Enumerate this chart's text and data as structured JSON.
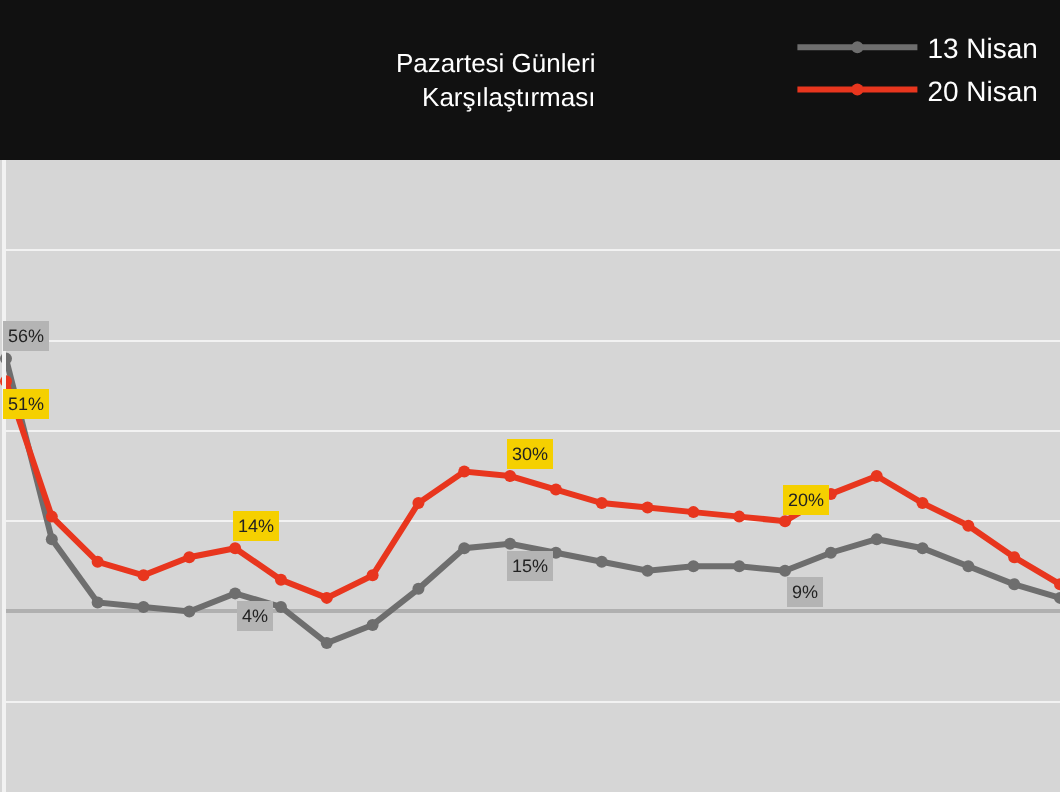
{
  "chart_data": {
    "type": "line",
    "title": "Pazartesi Günleri\nKarşılaştırması",
    "categories": [
      null,
      null,
      null,
      null,
      null,
      null,
      null,
      null,
      null,
      null,
      null,
      null,
      null,
      null,
      null,
      null,
      null,
      null,
      null,
      null,
      null,
      null,
      null,
      null
    ],
    "series": [
      {
        "name": "13 Nisan",
        "color": "#6e6e6e",
        "values": [
          56,
          16,
          2,
          1,
          0,
          4,
          1,
          -7,
          -3,
          5,
          14,
          15,
          13,
          11,
          9,
          10,
          10,
          9,
          13,
          16,
          14,
          10,
          6,
          3
        ],
        "value_labels": [
          "56%",
          null,
          null,
          null,
          null,
          "4%",
          null,
          null,
          null,
          null,
          null,
          "15%",
          null,
          null,
          null,
          null,
          null,
          "9%",
          null,
          null,
          null,
          null,
          null,
          null
        ]
      },
      {
        "name": "20 Nisan",
        "color": "#e8361e",
        "values": [
          51,
          21,
          11,
          8,
          12,
          14,
          7,
          3,
          8,
          24,
          31,
          30,
          27,
          24,
          23,
          22,
          21,
          20,
          26,
          30,
          24,
          19,
          12,
          6
        ],
        "value_labels": [
          "51%",
          null,
          null,
          null,
          null,
          "14%",
          null,
          null,
          null,
          null,
          null,
          "30%",
          null,
          null,
          null,
          null,
          null,
          "20%",
          null,
          null,
          null,
          null,
          null,
          null
        ]
      }
    ],
    "ylim": [
      -40,
      100
    ],
    "yticks": [
      {
        "value": -20,
        "label": null
      },
      {
        "value": 0,
        "label": null
      },
      {
        "value": 20,
        "label": null
      },
      {
        "value": 40,
        "label": null
      },
      {
        "value": 60,
        "label": null
      },
      {
        "value": 80,
        "label": null
      }
    ],
    "grid": "y",
    "legend": "top right",
    "marker": "circle"
  }
}
